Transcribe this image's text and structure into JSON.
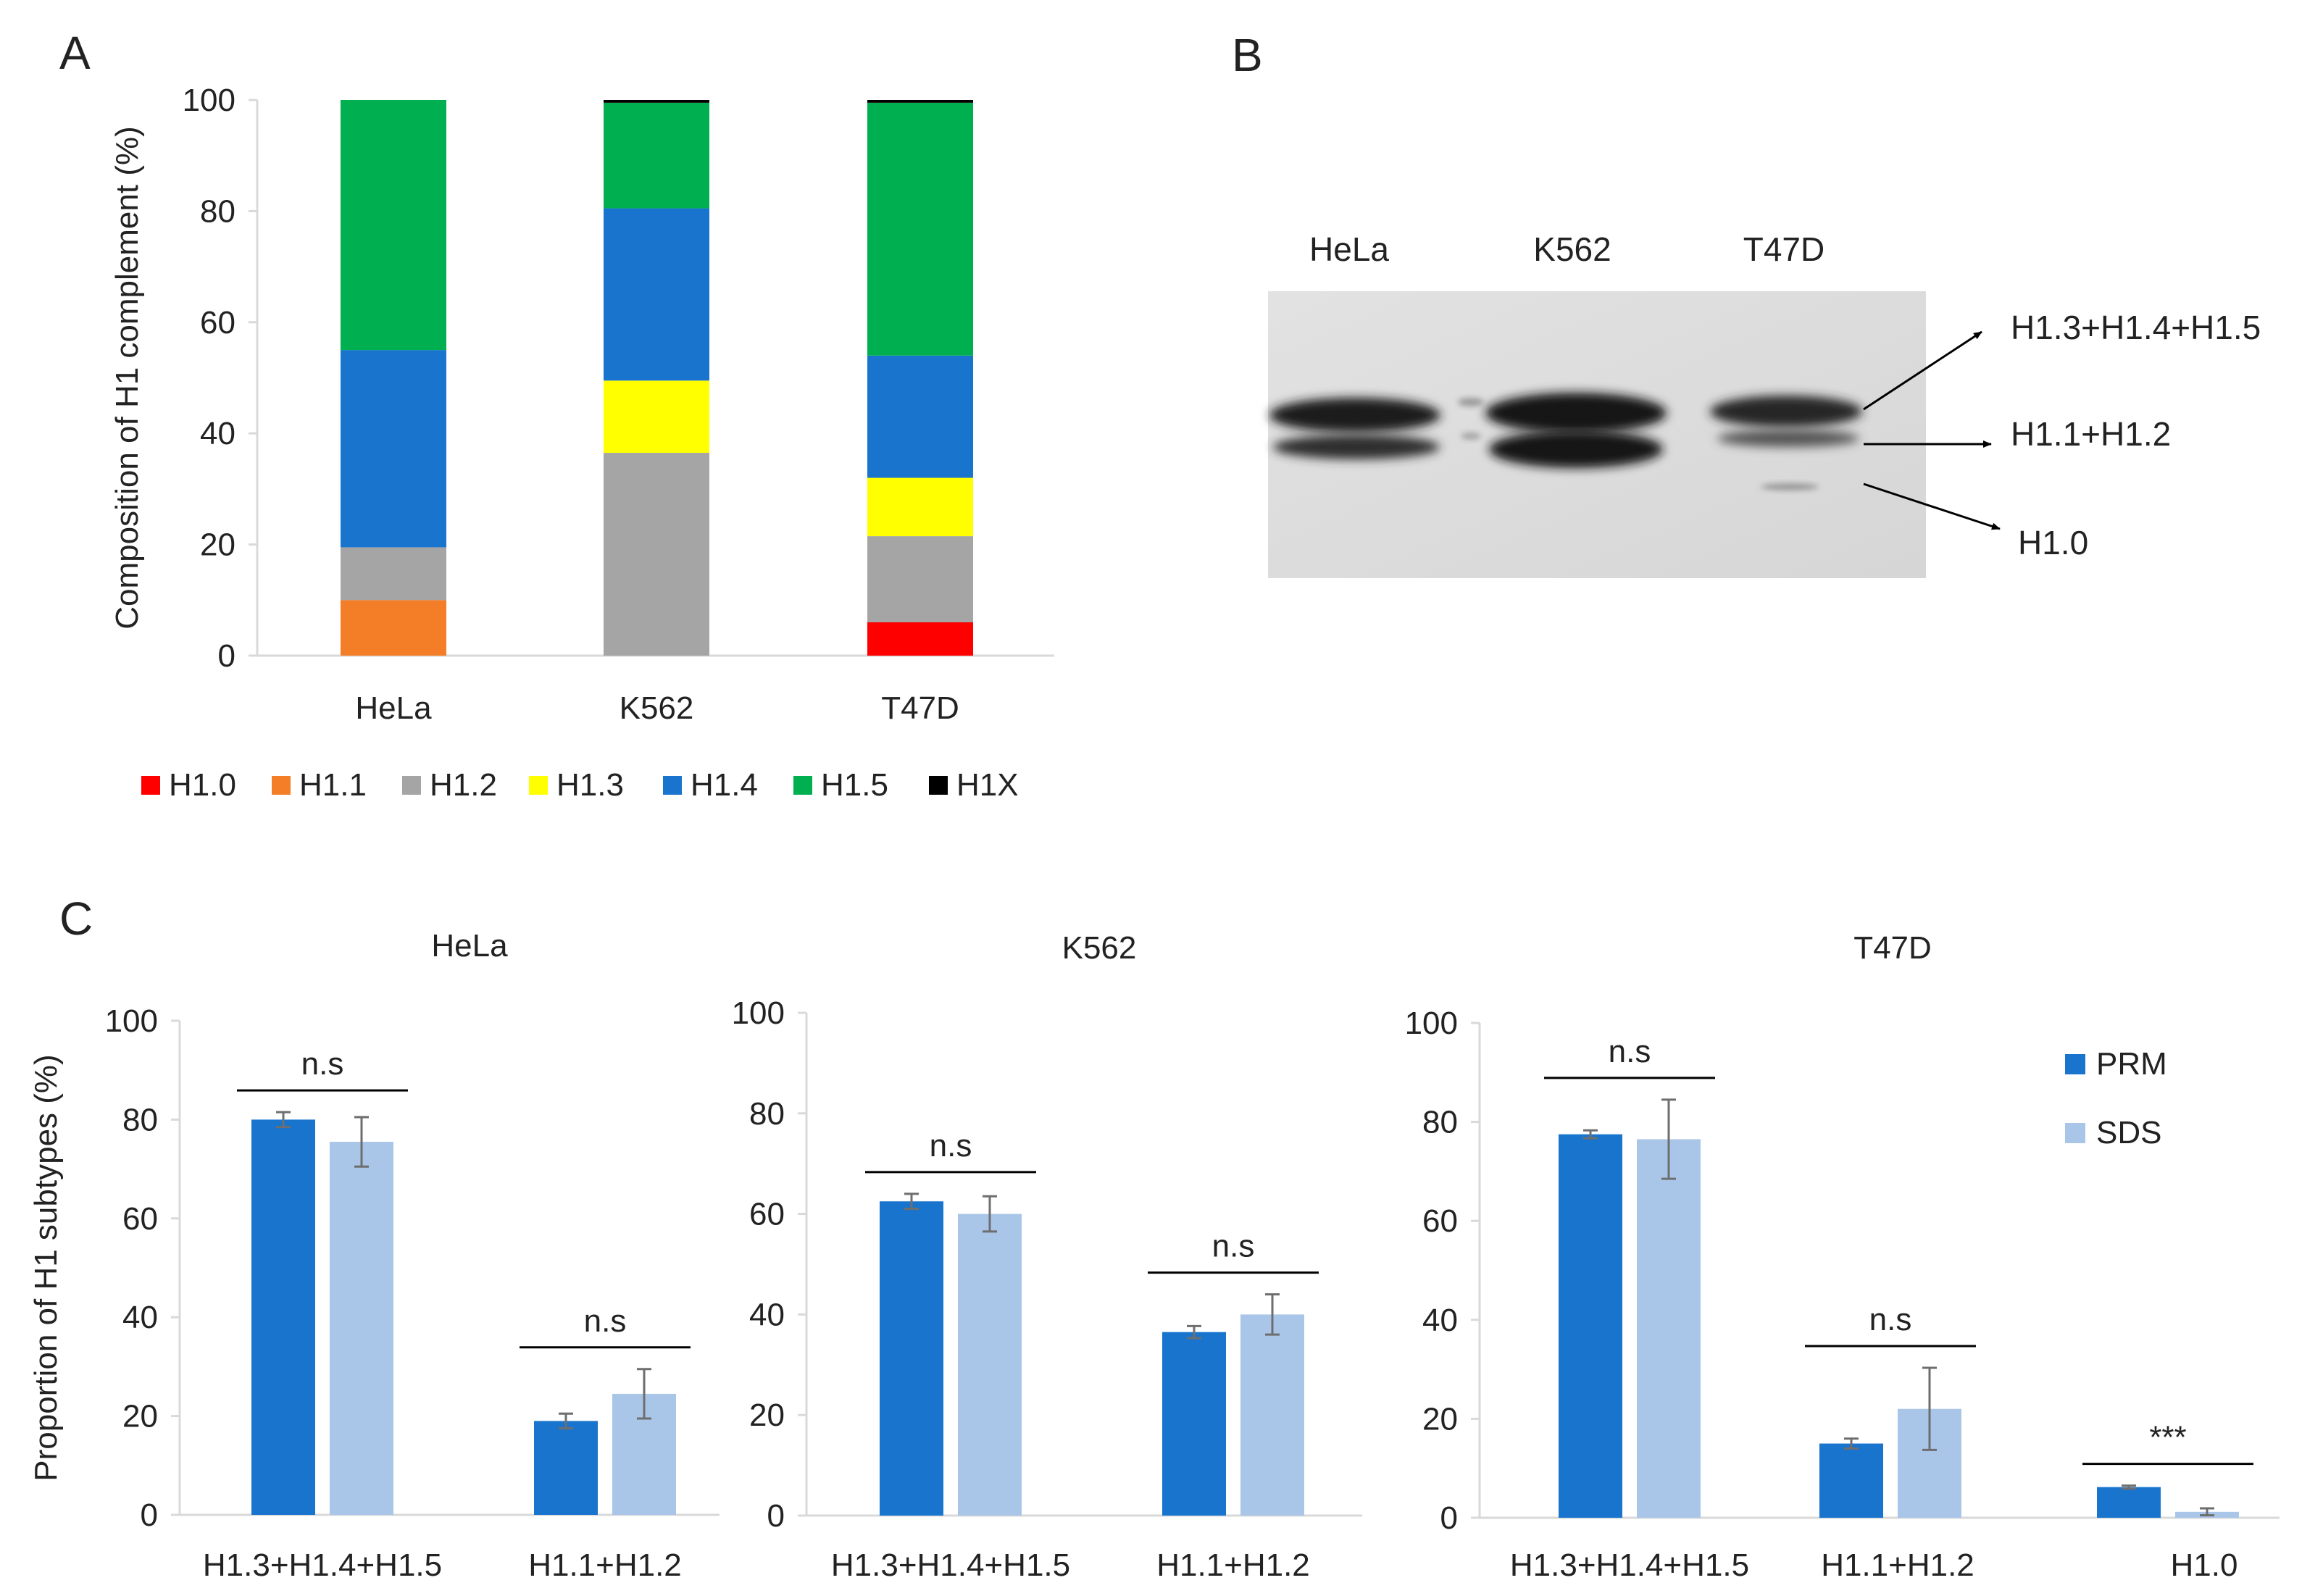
{
  "panels": {
    "a": "A",
    "b": "B",
    "c": "C"
  },
  "colors": {
    "H1.0": "#ff0000",
    "H1.1": "#f47e28",
    "H1.2": "#a5a5a5",
    "H1.3": "#ffff00",
    "H1.4": "#1874cd",
    "H1.5": "#00b050",
    "H1X": "#000000",
    "PRM": "#1874cd",
    "SDS": "#a9c6e8",
    "axis": "#d9d9d9"
  },
  "gel": {
    "lanes": [
      "HeLa",
      "K562",
      "T47D"
    ],
    "arrows": [
      "H1.3+H1.4+H1.5",
      "H1.1+H1.2",
      "H1.0"
    ]
  },
  "chart_data": [
    {
      "type": "bar",
      "stacked": true,
      "title": "",
      "ylabel": "Composition of H1 complement (%)",
      "xlabel": "",
      "ylim": [
        0,
        100
      ],
      "yticks": [
        "0",
        "20",
        "40",
        "60",
        "80",
        "100"
      ],
      "categories": [
        "HeLa",
        "K562",
        "T47D"
      ],
      "legend_position": "bottom",
      "series": [
        {
          "name": "H1.0",
          "values": [
            0,
            0,
            6
          ]
        },
        {
          "name": "H1.1",
          "values": [
            10,
            0,
            0
          ]
        },
        {
          "name": "H1.2",
          "values": [
            9.5,
            36.5,
            15.5
          ]
        },
        {
          "name": "H1.3",
          "values": [
            0,
            13,
            10.5
          ]
        },
        {
          "name": "H1.4",
          "values": [
            35.5,
            31,
            22
          ]
        },
        {
          "name": "H1.5",
          "values": [
            45,
            19,
            45.5
          ]
        },
        {
          "name": "H1X",
          "values": [
            0,
            0.5,
            0.5
          ]
        }
      ]
    },
    {
      "type": "bar",
      "title": "HeLa",
      "ylabel": "Proportion of H1 subtypes (%)",
      "ylim": [
        0,
        100
      ],
      "yticks": [
        "0",
        "20",
        "40",
        "60",
        "80",
        "100"
      ],
      "categories": [
        "H1.3+H1.4+H1.5",
        "H1.1+H1.2"
      ],
      "series": [
        {
          "name": "PRM",
          "values": [
            80,
            19
          ],
          "errors": [
            1.5,
            1.5
          ]
        },
        {
          "name": "SDS",
          "values": [
            75.5,
            24.5
          ],
          "errors": [
            5,
            5
          ]
        }
      ],
      "annotations": [
        "n.s",
        "n.s"
      ]
    },
    {
      "type": "bar",
      "title": "K562",
      "ylim": [
        0,
        100
      ],
      "yticks": [
        "0",
        "20",
        "40",
        "60",
        "80",
        "100"
      ],
      "categories": [
        "H1.3+H1.4+H1.5",
        "H1.1+H1.2"
      ],
      "series": [
        {
          "name": "PRM",
          "values": [
            62.5,
            36.5
          ],
          "errors": [
            1.5,
            1.2
          ]
        },
        {
          "name": "SDS",
          "values": [
            60,
            40
          ],
          "errors": [
            3.5,
            4
          ]
        }
      ],
      "annotations": [
        "n.s",
        "n.s"
      ]
    },
    {
      "type": "bar",
      "title": "T47D",
      "ylim": [
        0,
        100
      ],
      "yticks": [
        "0",
        "20",
        "40",
        "60",
        "80",
        "100"
      ],
      "categories": [
        "H1.3+H1.4+H1.5",
        "H1.1+H1.2",
        "H1.0"
      ],
      "series": [
        {
          "name": "PRM",
          "values": [
            77.5,
            15,
            6.2
          ],
          "errors": [
            0.8,
            1,
            0.3
          ]
        },
        {
          "name": "SDS",
          "values": [
            76.5,
            22,
            1.2
          ],
          "errors": [
            8,
            8.3,
            0.7
          ]
        }
      ],
      "annotations": [
        "n.s",
        "n.s",
        "***"
      ],
      "legend": [
        "PRM",
        "SDS"
      ],
      "legend_position": "top-right"
    }
  ]
}
